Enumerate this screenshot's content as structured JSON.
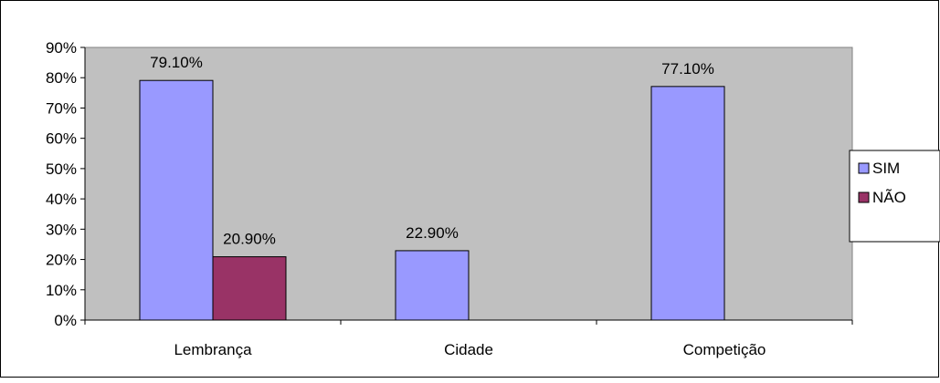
{
  "chart_data": {
    "type": "bar",
    "categories": [
      "Lembrança",
      "Cidade",
      "Competição"
    ],
    "series": [
      {
        "name": "SIM",
        "values": [
          79.1,
          22.9,
          77.1
        ],
        "labels": [
          "79.10%",
          "22.90%",
          "77.10%"
        ],
        "color": "#9999ff"
      },
      {
        "name": "NÃO",
        "values": [
          20.9,
          null,
          null
        ],
        "labels": [
          "20.90%",
          "",
          ""
        ],
        "color": "#993366"
      }
    ],
    "yticks": [
      "0%",
      "10%",
      "20%",
      "30%",
      "40%",
      "50%",
      "60%",
      "70%",
      "80%",
      "90%"
    ],
    "ylim": [
      0,
      90
    ],
    "grid": false,
    "legend": "right",
    "plot_background": "#c0c0c0",
    "title": "",
    "xlabel": "",
    "ylabel": ""
  }
}
